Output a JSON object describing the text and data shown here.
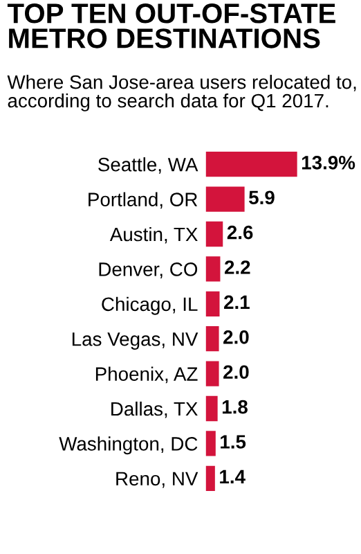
{
  "chart_data": {
    "type": "bar",
    "orientation": "horizontal",
    "title": "TOP TEN OUT-OF-STATE\nMETRO DESTINATIONS",
    "subtitle": "Where San Jose-area users relocated to, according to search data for Q1 2017.",
    "categories": [
      "Seattle, WA",
      "Portland, OR",
      "Austin, TX",
      "Denver, CO",
      "Chicago, IL",
      "Las Vegas, NV",
      "Phoenix, AZ",
      "Dallas, TX",
      "Washington, DC",
      "Reno, NV"
    ],
    "values": [
      13.9,
      5.9,
      2.6,
      2.2,
      2.1,
      2.0,
      2.0,
      1.8,
      1.5,
      1.4
    ],
    "value_labels": [
      "13.9%",
      "5.9",
      "2.6",
      "2.2",
      "2.1",
      "2.0",
      "2.0",
      "1.8",
      "1.5",
      "1.4"
    ],
    "color": "#d3143c",
    "grid": false,
    "legend": false
  }
}
